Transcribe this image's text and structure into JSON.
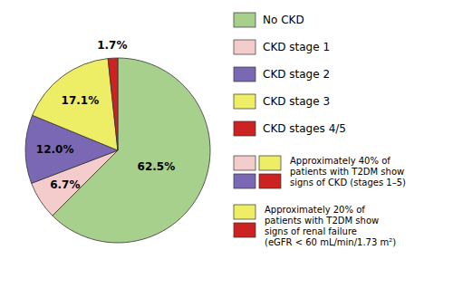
{
  "chart_data": {
    "type": "pie",
    "categories": [
      "No CKD",
      "CKD stage 1",
      "CKD stage 2",
      "CKD stage 3",
      "CKD stages 4/5"
    ],
    "values": [
      62.5,
      6.7,
      12.0,
      17.1,
      1.7
    ],
    "value_labels": [
      "62.5%",
      "6.7%",
      "12.0%",
      "17.1%",
      "1.7%"
    ],
    "colors": [
      "#a8d08d",
      "#f4cccc",
      "#7b68b5",
      "#eeee66",
      "#cc2222"
    ],
    "data_labels": true,
    "legend": "right",
    "annotations": [
      {
        "text": "Approximately 40% of\npatients with T2DM show\nsigns of CKD (stages 1–5)",
        "colors": [
          [
            "#f4cccc",
            "#eeee66"
          ],
          [
            "#7b68b5",
            "#cc2222"
          ]
        ]
      },
      {
        "text": "Approximately 20% of\npatients with T2DM show\nsigns of renal failure\n(eGFR < 60 mL/min/1.73 m²)",
        "colors": [
          [
            "#eeee66"
          ],
          [
            "#cc2222"
          ]
        ]
      }
    ]
  }
}
